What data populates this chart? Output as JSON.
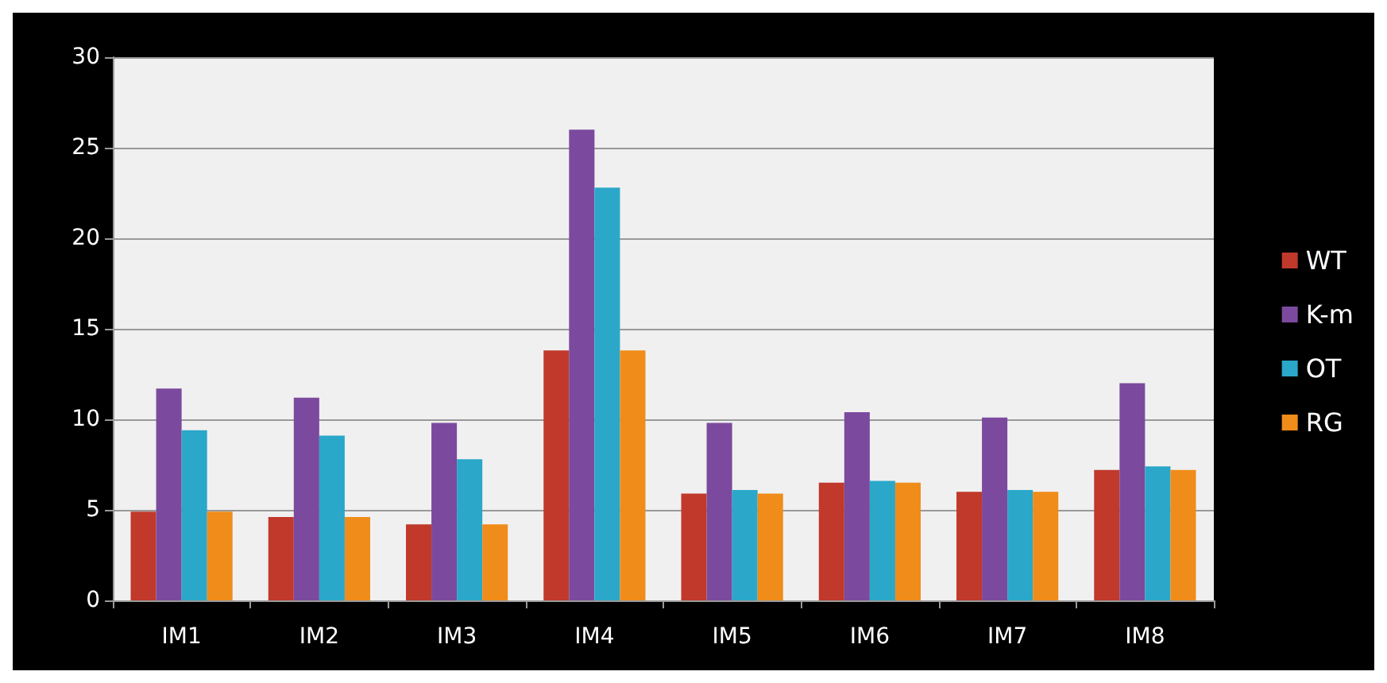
{
  "chart_data": {
    "type": "bar",
    "categories": [
      "IM1",
      "IM2",
      "IM3",
      "IM4",
      "IM5",
      "IM6",
      "IM7",
      "IM8"
    ],
    "series": [
      {
        "name": "WT",
        "color": "#c0392b",
        "values": [
          4.9,
          4.6,
          4.2,
          13.8,
          5.9,
          6.5,
          6.0,
          7.2
        ]
      },
      {
        "name": "K-m",
        "color": "#7b4a9e",
        "values": [
          11.7,
          11.2,
          9.8,
          26.0,
          9.8,
          10.4,
          10.1,
          12.0
        ]
      },
      {
        "name": "OT",
        "color": "#2aa7c9",
        "values": [
          9.4,
          9.1,
          7.8,
          22.8,
          6.1,
          6.6,
          6.1,
          7.4
        ]
      },
      {
        "name": "RG",
        "color": "#f08c1a",
        "values": [
          4.9,
          4.6,
          4.2,
          13.8,
          5.9,
          6.5,
          6.0,
          7.2
        ]
      }
    ],
    "ylim": [
      0,
      30
    ],
    "yticks": [
      0,
      5,
      10,
      15,
      20,
      25,
      30
    ],
    "grid": "y",
    "legend": "right"
  }
}
